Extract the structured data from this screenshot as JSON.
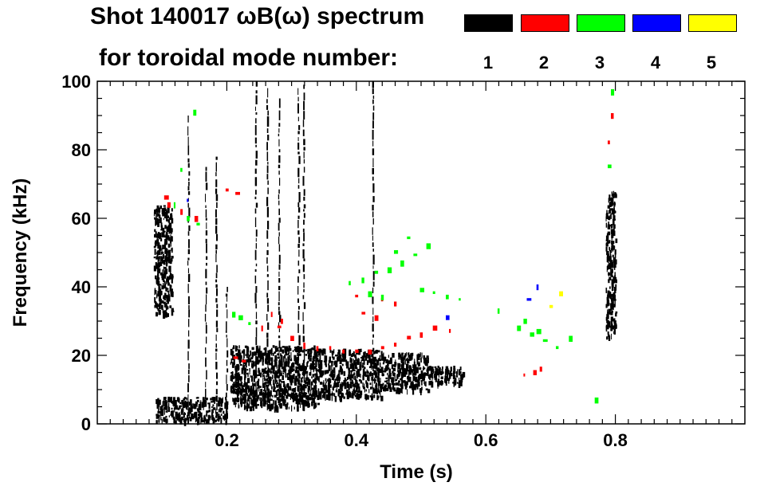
{
  "chart_data": {
    "type": "scatter",
    "title_line1": "Shot 140017 ωB(ω) spectrum",
    "title_line2": "for toroidal mode number:",
    "xlabel": "Time (s)",
    "ylabel": "Frequency (kHz)",
    "xlim": [
      0.0,
      1.0
    ],
    "ylim": [
      0,
      100
    ],
    "x_ticks": [
      0.2,
      0.4,
      0.6,
      0.8
    ],
    "x_tick_labels": [
      "0.2",
      "0.4",
      "0.6",
      "0.8"
    ],
    "y_ticks": [
      0,
      20,
      40,
      60,
      80,
      100
    ],
    "y_tick_labels": [
      "0",
      "20",
      "40",
      "60",
      "80",
      "100"
    ],
    "legend": [
      {
        "label": "1",
        "color": "#000000"
      },
      {
        "label": "2",
        "color": "#ff0000"
      },
      {
        "label": "3",
        "color": "#00ff00"
      },
      {
        "label": "4",
        "color": "#0000ff"
      },
      {
        "label": "5",
        "color": "#ffff00"
      }
    ],
    "series": [
      {
        "name": "n=1",
        "color": "#000000",
        "blobs": [
          {
            "t0": 0.087,
            "t1": 0.115,
            "f0": 32,
            "f1": 64
          },
          {
            "t0": 0.205,
            "t1": 0.34,
            "f0": 5,
            "f1": 23
          },
          {
            "t0": 0.34,
            "t1": 0.44,
            "f0": 8,
            "f1": 22
          },
          {
            "t0": 0.44,
            "t1": 0.51,
            "f0": 10,
            "f1": 21
          },
          {
            "t0": 0.51,
            "t1": 0.565,
            "f0": 12,
            "f1": 17
          },
          {
            "t0": 0.09,
            "t1": 0.2,
            "f0": 1,
            "f1": 8
          },
          {
            "t0": 0.785,
            "t1": 0.8,
            "f0": 25,
            "f1": 68
          }
        ],
        "vlines": [
          {
            "t": 0.183,
            "f0": 3,
            "f1": 78
          },
          {
            "t": 0.199,
            "f0": 2,
            "f1": 40
          },
          {
            "t": 0.244,
            "f0": 5,
            "f1": 100
          },
          {
            "t": 0.262,
            "f0": 5,
            "f1": 98
          },
          {
            "t": 0.28,
            "f0": 5,
            "f1": 95
          },
          {
            "t": 0.31,
            "f0": 5,
            "f1": 98
          },
          {
            "t": 0.318,
            "f0": 5,
            "f1": 99
          },
          {
            "t": 0.425,
            "f0": 8,
            "f1": 100
          },
          {
            "t": 0.167,
            "f0": 5,
            "f1": 75
          },
          {
            "t": 0.14,
            "f0": 3,
            "f1": 90
          }
        ]
      },
      {
        "name": "n=2",
        "color": "#ff0000",
        "points": [
          [
            0.105,
            66
          ],
          [
            0.11,
            64
          ],
          [
            0.13,
            62
          ],
          [
            0.152,
            60
          ],
          [
            0.212,
            19
          ],
          [
            0.225,
            18
          ],
          [
            0.255,
            28
          ],
          [
            0.28,
            28
          ],
          [
            0.3,
            25
          ],
          [
            0.32,
            23
          ],
          [
            0.34,
            22
          ],
          [
            0.36,
            22
          ],
          [
            0.38,
            21
          ],
          [
            0.4,
            21
          ],
          [
            0.42,
            21
          ],
          [
            0.44,
            22
          ],
          [
            0.46,
            23
          ],
          [
            0.48,
            25
          ],
          [
            0.5,
            26
          ],
          [
            0.52,
            28
          ],
          [
            0.545,
            27
          ],
          [
            0.41,
            32
          ],
          [
            0.43,
            31
          ],
          [
            0.4,
            37
          ],
          [
            0.44,
            36
          ],
          [
            0.46,
            35
          ],
          [
            0.66,
            14
          ],
          [
            0.675,
            15
          ],
          [
            0.685,
            16
          ],
          [
            0.79,
            82
          ],
          [
            0.795,
            90
          ],
          [
            0.2,
            68
          ],
          [
            0.215,
            67
          ],
          [
            0.27,
            32
          ],
          [
            0.285,
            30
          ]
        ]
      },
      {
        "name": "n=3",
        "color": "#00ff00",
        "points": [
          [
            0.12,
            64
          ],
          [
            0.14,
            60
          ],
          [
            0.155,
            58
          ],
          [
            0.21,
            32
          ],
          [
            0.22,
            31
          ],
          [
            0.235,
            29
          ],
          [
            0.39,
            41
          ],
          [
            0.41,
            42
          ],
          [
            0.43,
            44
          ],
          [
            0.45,
            45
          ],
          [
            0.47,
            47
          ],
          [
            0.49,
            49
          ],
          [
            0.51,
            52
          ],
          [
            0.46,
            50
          ],
          [
            0.48,
            54
          ],
          [
            0.5,
            39
          ],
          [
            0.52,
            38
          ],
          [
            0.54,
            37
          ],
          [
            0.56,
            36
          ],
          [
            0.42,
            38
          ],
          [
            0.44,
            37
          ],
          [
            0.62,
            33
          ],
          [
            0.65,
            28
          ],
          [
            0.67,
            26
          ],
          [
            0.69,
            24
          ],
          [
            0.71,
            22
          ],
          [
            0.73,
            25
          ],
          [
            0.66,
            30
          ],
          [
            0.68,
            27
          ],
          [
            0.795,
            97
          ],
          [
            0.79,
            75
          ],
          [
            0.77,
            7
          ],
          [
            0.13,
            74
          ],
          [
            0.15,
            91
          ]
        ]
      },
      {
        "name": "n=4",
        "color": "#0000ff",
        "points": [
          [
            0.14,
            65
          ],
          [
            0.54,
            31
          ],
          [
            0.665,
            36
          ],
          [
            0.68,
            40
          ]
        ]
      },
      {
        "name": "n=5",
        "color": "#ffff00",
        "points": [
          [
            0.7,
            34
          ],
          [
            0.715,
            38
          ]
        ]
      }
    ]
  }
}
